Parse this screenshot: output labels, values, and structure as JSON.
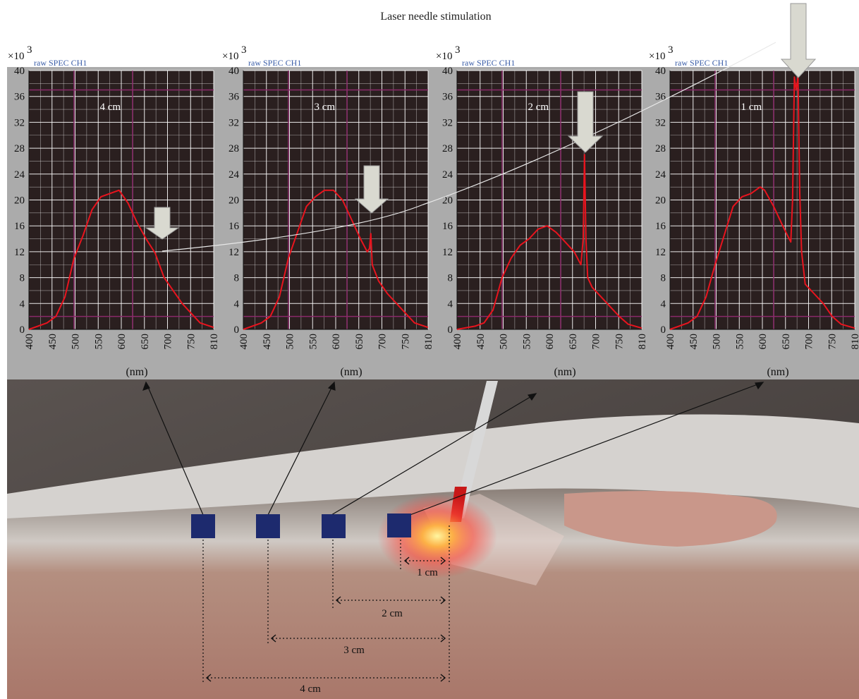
{
  "title": "Laser needle stimulation",
  "colors": {
    "panel_bg": "#ababab",
    "plot_bg": "#2a1f1f",
    "grid": "#ffffff",
    "marker_line": "#8a2a6a",
    "spectrum": "#e8141e",
    "arrow_fill": "#d9d9d0",
    "marker_square": "#1d2a6e"
  },
  "chart_data": [
    {
      "type": "line",
      "label": "4 cm",
      "channel": "raw SPEC CH1",
      "y_multiplier": "×10",
      "y_exponent": "3",
      "xlabel": "(nm)",
      "ylim": [
        0,
        40
      ],
      "xlim": [
        400,
        810
      ],
      "yticks": [
        "0",
        "4",
        "8",
        "12",
        "16",
        "20",
        "24",
        "28",
        "32",
        "36",
        "40"
      ],
      "xticks": [
        "400",
        "450",
        "500",
        "550",
        "600",
        "650",
        "700",
        "750",
        "810"
      ],
      "x": [
        400,
        440,
        460,
        480,
        500,
        520,
        540,
        560,
        580,
        600,
        620,
        640,
        660,
        680,
        700,
        720,
        740,
        760,
        780,
        810
      ],
      "y": [
        0,
        1,
        2,
        5,
        11,
        14.5,
        18.5,
        20.5,
        21,
        21.5,
        19.5,
        16.5,
        14,
        11.8,
        8,
        6,
        4,
        2.5,
        1,
        0.3
      ],
      "peak": null
    },
    {
      "type": "line",
      "label": "3 cm",
      "channel": "raw SPEC CH1",
      "y_multiplier": "×10",
      "y_exponent": "3",
      "xlabel": "(nm)",
      "ylim": [
        0,
        40
      ],
      "xlim": [
        400,
        810
      ],
      "yticks": [
        "0",
        "4",
        "8",
        "12",
        "16",
        "20",
        "24",
        "28",
        "32",
        "36",
        "40"
      ],
      "xticks": [
        "400",
        "450",
        "500",
        "550",
        "600",
        "650",
        "700",
        "750",
        "810"
      ],
      "x": [
        400,
        440,
        460,
        480,
        500,
        520,
        540,
        560,
        580,
        600,
        620,
        640,
        660,
        675,
        680,
        683,
        686,
        700,
        720,
        740,
        760,
        780,
        810
      ],
      "y": [
        0,
        1,
        2,
        5,
        11,
        15,
        19,
        20.5,
        21.5,
        21.5,
        20,
        17,
        14,
        12,
        12.5,
        14.8,
        10,
        7.5,
        5.5,
        4,
        2.5,
        1,
        0.3
      ],
      "peak": 15
    },
    {
      "type": "line",
      "label": "2 cm",
      "channel": "raw SPEC CH1",
      "y_multiplier": "×10",
      "y_exponent": "3",
      "xlabel": "(nm)",
      "ylim": [
        0,
        40
      ],
      "xlim": [
        400,
        810
      ],
      "yticks": [
        "0",
        "4",
        "8",
        "12",
        "16",
        "20",
        "24",
        "28",
        "32",
        "36",
        "40"
      ],
      "xticks": [
        "400",
        "450",
        "500",
        "550",
        "600",
        "650",
        "700",
        "750",
        "810"
      ],
      "x": [
        400,
        440,
        460,
        480,
        500,
        520,
        540,
        560,
        580,
        600,
        620,
        640,
        660,
        675,
        680,
        683,
        686,
        690,
        700,
        720,
        740,
        760,
        780,
        810
      ],
      "y": [
        0,
        0.5,
        1,
        3,
        8,
        11,
        13,
        14,
        15.5,
        16,
        15,
        13.5,
        12,
        10,
        14,
        27,
        14,
        8,
        6.5,
        5,
        3.5,
        2,
        0.8,
        0.2
      ],
      "peak": 27
    },
    {
      "type": "line",
      "label": "1 cm",
      "channel": "raw SPEC CH1",
      "y_multiplier": "×10",
      "y_exponent": "3",
      "xlabel": "(nm)",
      "ylim": [
        0,
        40
      ],
      "xlim": [
        400,
        810
      ],
      "yticks": [
        "0",
        "4",
        "8",
        "12",
        "16",
        "20",
        "24",
        "28",
        "32",
        "36",
        "40"
      ],
      "xticks": [
        "400",
        "450",
        "500",
        "550",
        "600",
        "650",
        "700",
        "750",
        "810"
      ],
      "x": [
        400,
        440,
        460,
        480,
        500,
        520,
        540,
        560,
        580,
        600,
        610,
        630,
        650,
        668,
        672,
        676,
        680,
        684,
        688,
        692,
        700,
        720,
        740,
        760,
        780,
        810
      ],
      "y": [
        0,
        1,
        2,
        5,
        10,
        14.5,
        19,
        20.5,
        21,
        22,
        21.5,
        19,
        16,
        13.5,
        20,
        39,
        37,
        39,
        21,
        12,
        7,
        5.5,
        4,
        2,
        0.8,
        0.2
      ],
      "peak": 39
    }
  ],
  "measurements": [
    "1 cm",
    "2 cm",
    "3 cm",
    "4 cm"
  ]
}
